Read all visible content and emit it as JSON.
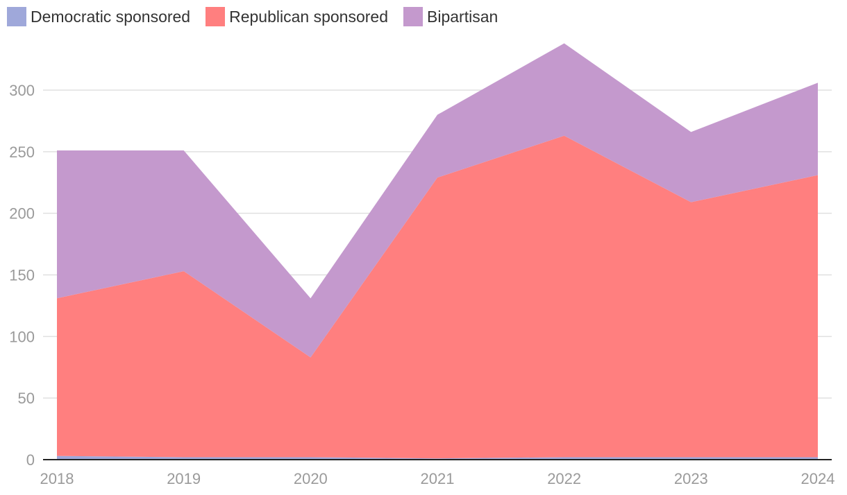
{
  "chart_data": {
    "type": "area",
    "stacked": true,
    "categories": [
      "2018",
      "2019",
      "2020",
      "2021",
      "2022",
      "2023",
      "2024"
    ],
    "series": [
      {
        "name": "Democratic sponsored",
        "values": [
          3,
          2,
          2,
          1,
          2,
          2,
          2
        ],
        "color": "#9fa8da"
      },
      {
        "name": "Republican sponsored",
        "values": [
          128,
          151,
          81,
          228,
          261,
          207,
          229
        ],
        "color": "#ff7f7f"
      },
      {
        "name": "Bipartisan",
        "values": [
          120,
          98,
          48,
          51,
          75,
          57,
          75
        ],
        "color": "#c499cd"
      }
    ],
    "yticks": [
      "0",
      "50",
      "100",
      "150",
      "200",
      "250",
      "300"
    ],
    "ylim": [
      0,
      350
    ],
    "grid": true,
    "legend_position": "top-left",
    "title": "",
    "xlabel": "",
    "ylabel": ""
  }
}
